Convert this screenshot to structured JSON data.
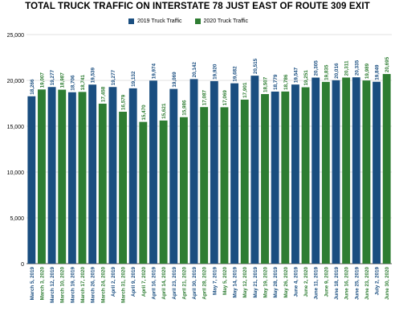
{
  "chart_data": {
    "type": "bar",
    "title": "TOTAL TRUCK TRAFFIC ON INTERSTATE 78 JUST EAST OF ROUTE 309 EXIT",
    "xlabel": "",
    "ylabel": "",
    "ylim": [
      0,
      25000
    ],
    "y_ticks": [
      "0",
      "5,000",
      "10,000",
      "15,000",
      "20,000",
      "25,000"
    ],
    "grid": true,
    "legend_position": "top",
    "colors": {
      "2019 Truck Traffic": "#1a4e80",
      "2020 Truck Traffic": "#2e7d32"
    },
    "series": [
      {
        "name": "2019 Truck Traffic",
        "color": "#1a4e80"
      },
      {
        "name": "2020 Truck Traffic",
        "color": "#2e7d32"
      }
    ],
    "categories": [
      "March 5, 2019",
      "March 3, 2020",
      "March 12, 2019",
      "March 10, 2020",
      "March 19, 2019",
      "March 17, 2020",
      "March 26, 2019",
      "March 24, 2020",
      "April 2, 2019",
      "March 31, 2020",
      "April 9, 2019",
      "April 7, 2020",
      "April 16, 2019",
      "April 14, 2020",
      "April 23, 2019",
      "April 21, 2020",
      "April 30, 2019",
      "April 28, 2020",
      "May 7, 2019",
      "May 5, 2020",
      "May 14, 2019",
      "May 12, 2020",
      "May 21, 2019",
      "May 19, 2020",
      "May 28, 2019",
      "May 26, 2020",
      "June 4, 2019",
      "June 2, 2020",
      "June 11, 2019",
      "June 9, 2020",
      "June 18, 2019",
      "June 16, 2020",
      "June 25, 2019",
      "June 23, 2020",
      "July 2, 2019",
      "June 30, 2020"
    ],
    "values": [
      18266,
      19007,
      19277,
      18987,
      18706,
      18741,
      19539,
      17458,
      19277,
      16579,
      19132,
      15470,
      19974,
      15621,
      19069,
      15986,
      20142,
      17087,
      19920,
      17069,
      19682,
      17901,
      20515,
      18507,
      18779,
      18786,
      19547,
      19251,
      20305,
      19835,
      20016,
      20311,
      20335,
      19989,
      19849,
      20695
    ],
    "value_labels": [
      "18,266",
      "19,007",
      "19,277",
      "18,987",
      "18,706",
      "18,741",
      "19,539",
      "17,458",
      "19,277",
      "16,579",
      "19,132",
      "15,470",
      "19,974",
      "15,621",
      "19,069",
      "15,986",
      "20,142",
      "17,087",
      "19,920",
      "17,069",
      "19,682",
      "17,901",
      "20,515",
      "18,507",
      "18,779",
      "18,786",
      "19,547",
      "19,251",
      "20,305",
      "19,835",
      "20,016",
      "20,311",
      "20,335",
      "19,989",
      "19,849",
      "20,695"
    ],
    "bar_series": [
      "2019 Truck Traffic",
      "2020 Truck Traffic",
      "2019 Truck Traffic",
      "2020 Truck Traffic",
      "2019 Truck Traffic",
      "2020 Truck Traffic",
      "2019 Truck Traffic",
      "2020 Truck Traffic",
      "2019 Truck Traffic",
      "2020 Truck Traffic",
      "2019 Truck Traffic",
      "2020 Truck Traffic",
      "2019 Truck Traffic",
      "2020 Truck Traffic",
      "2019 Truck Traffic",
      "2020 Truck Traffic",
      "2019 Truck Traffic",
      "2020 Truck Traffic",
      "2019 Truck Traffic",
      "2020 Truck Traffic",
      "2019 Truck Traffic",
      "2020 Truck Traffic",
      "2019 Truck Traffic",
      "2020 Truck Traffic",
      "2019 Truck Traffic",
      "2020 Truck Traffic",
      "2019 Truck Traffic",
      "2020 Truck Traffic",
      "2019 Truck Traffic",
      "2020 Truck Traffic",
      "2019 Truck Traffic",
      "2020 Truck Traffic",
      "2019 Truck Traffic",
      "2020 Truck Traffic",
      "2019 Truck Traffic",
      "2020 Truck Traffic"
    ]
  }
}
